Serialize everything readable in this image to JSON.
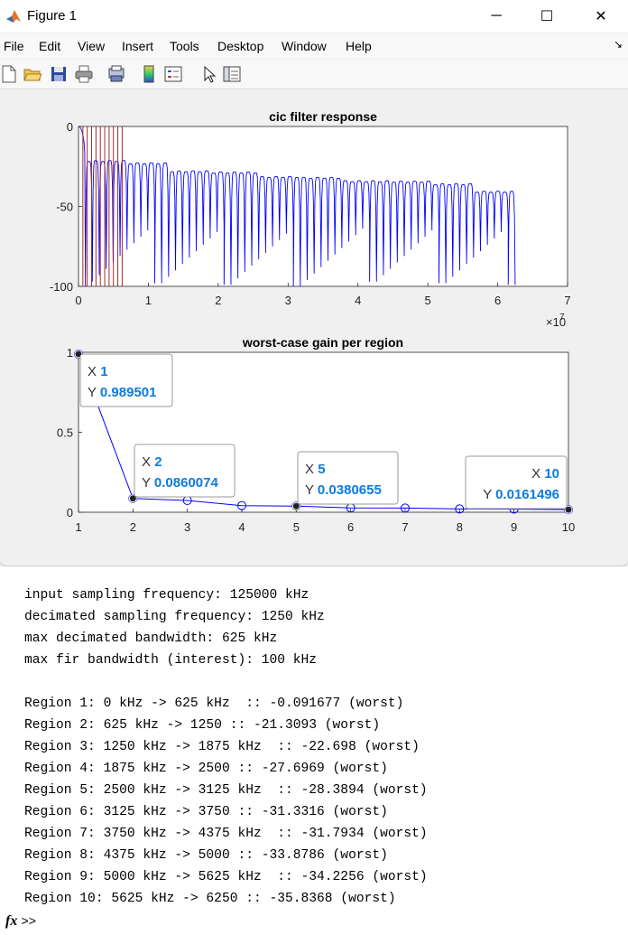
{
  "window": {
    "title": "Figure 1",
    "minimize_glyph": "─",
    "maximize_glyph": "☐",
    "close_glyph": "✕",
    "dock_glyph": "↘"
  },
  "menu": [
    "File",
    "Edit",
    "View",
    "Insert",
    "Tools",
    "Desktop",
    "Window",
    "Help"
  ],
  "toolbar_icons": [
    "new-figure-icon",
    "open-file-icon",
    "save-icon",
    "print-icon",
    "print-preview-icon",
    "colorbar-icon",
    "legend-icon",
    "pointer-icon",
    "property-editor-icon"
  ],
  "colors": {
    "line": "#0000ff",
    "region_lines": "#a52a2a",
    "datatip_blue": "#0c7be0"
  },
  "chart_data": [
    {
      "type": "line",
      "title": "cic filter response",
      "xlim": [
        0,
        7
      ],
      "ylim": [
        -100,
        0
      ],
      "xticks": [
        0,
        1,
        2,
        3,
        4,
        5,
        6,
        7
      ],
      "yticks": [
        0,
        -50,
        -100
      ],
      "x_exponent_label": "×10",
      "x_exponent_power": "7",
      "x_data_range": [
        0,
        6.25
      ],
      "lobe_count": 63,
      "sidelobe_peaks_db": [
        -21.3,
        -22.7,
        -27.7,
        -28.4,
        -31.3,
        -31.8,
        -33.9,
        -34.2,
        -35.8,
        -40.5
      ],
      "region_lines_x": [
        0.0625,
        0.125,
        0.1875,
        0.25,
        0.3125,
        0.375,
        0.4375,
        0.5,
        0.5625,
        0.625
      ]
    },
    {
      "type": "line",
      "title": "worst-case gain per region",
      "xlim": [
        1,
        10
      ],
      "ylim": [
        0,
        1
      ],
      "xticks": [
        1,
        2,
        3,
        4,
        5,
        6,
        7,
        8,
        9,
        10
      ],
      "yticks": [
        0,
        0.5,
        1
      ],
      "ytick_labels": [
        "0",
        "0.5",
        "1"
      ],
      "x": [
        1,
        2,
        3,
        4,
        5,
        6,
        7,
        8,
        9,
        10
      ],
      "y": [
        0.989501,
        0.0860074,
        0.0733,
        0.0413,
        0.0380655,
        0.0272,
        0.0258,
        0.0203,
        0.0194,
        0.0161496
      ],
      "datatips": [
        {
          "x": "1",
          "y": "0.989501"
        },
        {
          "x": "2",
          "y": "0.0860074"
        },
        {
          "x": "5",
          "y": "0.0380655"
        },
        {
          "x": "10",
          "y": "0.0161496"
        }
      ]
    }
  ],
  "console": {
    "lines": [
      "input sampling frequency: 125000 kHz",
      "decimated sampling frequency: 1250 kHz",
      "max decimated bandwidth: 625 kHz",
      "max fir bandwidth (interest): 100 kHz",
      "",
      "Region 1: 0 kHz -> 625 kHz  :: -0.091677 (worst)",
      "Region 2: 625 kHz -> 1250 :: -21.3093 (worst)",
      "Region 3: 1250 kHz -> 1875 kHz  :: -22.698 (worst)",
      "Region 4: 1875 kHz -> 2500 :: -27.6969 (worst)",
      "Region 5: 2500 kHz -> 3125 kHz  :: -28.3894 (worst)",
      "Region 6: 3125 kHz -> 3750 :: -31.3316 (worst)",
      "Region 7: 3750 kHz -> 4375 kHz  :: -31.7934 (worst)",
      "Region 8: 4375 kHz -> 5000 :: -33.8786 (worst)",
      "Region 9: 5000 kHz -> 5625 kHz  :: -34.2256 (worst)",
      "Region 10: 5625 kHz -> 6250 :: -35.8368 (worst)"
    ],
    "prompt_fx": "fx",
    "prompt": ">>"
  }
}
